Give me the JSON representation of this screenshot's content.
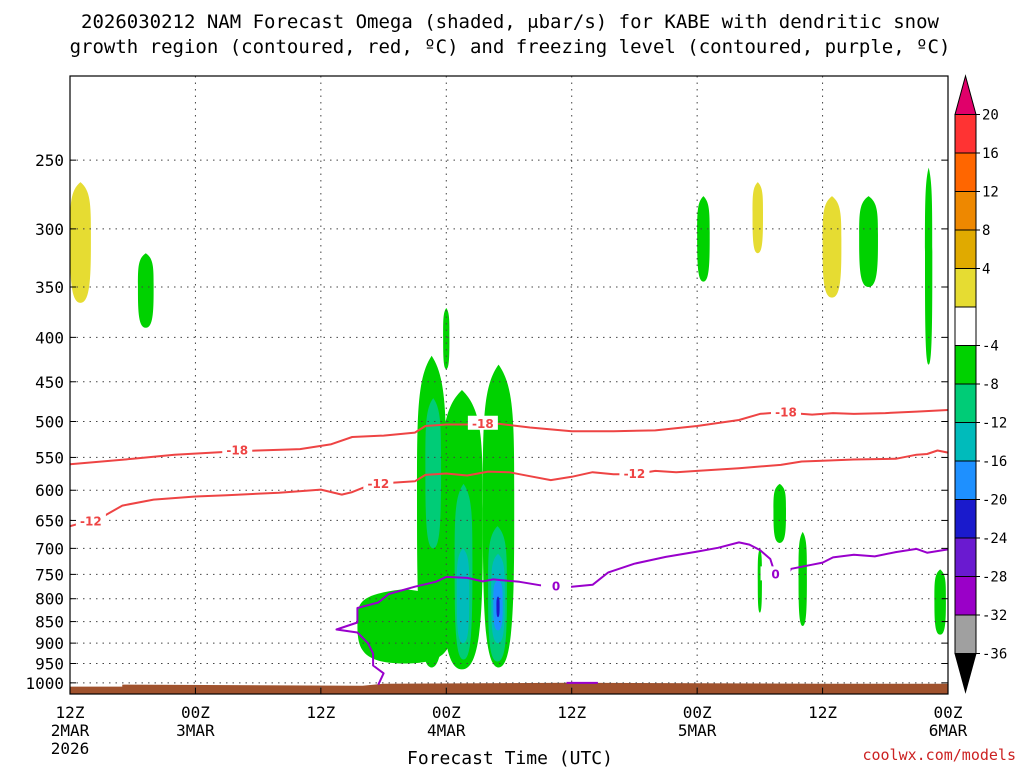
{
  "chart_data": {
    "type": "heatmap",
    "title_lines": [
      "2026030212 NAM Forecast Omega (shaded, μbar/s) for KABE with dendritic snow",
      "growth region (contoured, red, ºC) and freezing level (contoured, purple, ºC)"
    ],
    "xlabel": "Forecast Time (UTC)",
    "credit": "coolwx.com/models",
    "x_ticks": [
      {
        "label": "12Z",
        "sub": "2MAR",
        "sub2": "2026",
        "h": 0
      },
      {
        "label": "00Z",
        "sub": "3MAR",
        "sub2": "",
        "h": 12
      },
      {
        "label": "12Z",
        "sub": "",
        "sub2": "",
        "h": 24
      },
      {
        "label": "00Z",
        "sub": "4MAR",
        "sub2": "",
        "h": 36
      },
      {
        "label": "12Z",
        "sub": "",
        "sub2": "",
        "h": 48
      },
      {
        "label": "00Z",
        "sub": "5MAR",
        "sub2": "",
        "h": 60
      },
      {
        "label": "12Z",
        "sub": "",
        "sub2": "",
        "h": 72
      },
      {
        "label": "00Z",
        "sub": "6MAR",
        "sub2": "",
        "h": 84
      }
    ],
    "x_range_hours": [
      0,
      84
    ],
    "y_axis": "pressure (mb), log scale",
    "y_ticks": [
      250,
      300,
      350,
      400,
      450,
      500,
      550,
      600,
      650,
      700,
      750,
      800,
      850,
      900,
      950,
      1000
    ],
    "y_range_mb": [
      200,
      1030
    ],
    "grid": true,
    "colorbar": {
      "labels": [
        "20",
        "16",
        "12",
        "8",
        "4",
        "-4",
        "-8",
        "-12",
        "-16",
        "-20",
        "-24",
        "-28",
        "-32",
        "-36"
      ],
      "segments": [
        {
          "from": 20,
          "to": 24,
          "color": "#e0006a"
        },
        {
          "from": 16,
          "to": 20,
          "color": "#ff3333"
        },
        {
          "from": 12,
          "to": 16,
          "color": "#ff6600"
        },
        {
          "from": 8,
          "to": 12,
          "color": "#ee8800"
        },
        {
          "from": 4,
          "to": 8,
          "color": "#e0aa00"
        },
        {
          "from": 0,
          "to": 4,
          "color": "#e6dc32"
        },
        {
          "from": -4,
          "to": 0,
          "color": "#ffffff"
        },
        {
          "from": -8,
          "to": -4,
          "color": "#00d200"
        },
        {
          "from": -12,
          "to": -8,
          "color": "#00cc77"
        },
        {
          "from": -16,
          "to": -12,
          "color": "#00bbbb"
        },
        {
          "from": -20,
          "to": -16,
          "color": "#1e90ff"
        },
        {
          "from": -24,
          "to": -20,
          "color": "#1a1acc"
        },
        {
          "from": -28,
          "to": -24,
          "color": "#6a1ad0"
        },
        {
          "from": -32,
          "to": -28,
          "color": "#9a00c8"
        },
        {
          "from": -36,
          "to": -32,
          "color": "#a0a0a0"
        },
        {
          "from": -40,
          "to": -36,
          "color": "#000000"
        }
      ]
    },
    "colors": {
      "dgz": "#ee4444",
      "freezing": "#9900cc",
      "ground": "#a0522d",
      "credit": "#cc2222"
    },
    "omega_areas": [
      {
        "value": 6,
        "color": "#e6dc32",
        "h0": 0,
        "h1": 2,
        "p_top": 265,
        "p_bot": 365
      },
      {
        "value": -6,
        "color": "#00d200",
        "h0": 6.5,
        "h1": 8,
        "p_top": 320,
        "p_bot": 390
      },
      {
        "value": -6,
        "color": "#00d200",
        "h0": 35.7,
        "h1": 36.3,
        "p_top": 370,
        "p_bot": 435
      },
      {
        "value": -6,
        "color": "#00d200",
        "h0": 33.2,
        "h1": 36,
        "p_top": 420,
        "p_bot": 960
      },
      {
        "value": -6,
        "color": "#00d200",
        "h0": 35.5,
        "h1": 39.5,
        "p_top": 460,
        "p_bot": 965
      },
      {
        "value": -6,
        "color": "#00d200",
        "h0": 39.5,
        "h1": 42.5,
        "p_top": 430,
        "p_bot": 960
      },
      {
        "value": -6,
        "color": "#00d200",
        "h0": 27.5,
        "h1": 36.5,
        "p_top": 780,
        "p_bot": 950
      },
      {
        "value": -10,
        "color": "#00cc77",
        "h0": 34,
        "h1": 35.5,
        "p_top": 470,
        "p_bot": 700
      },
      {
        "value": -10,
        "color": "#00cc77",
        "h0": 36.8,
        "h1": 38.5,
        "p_top": 590,
        "p_bot": 940
      },
      {
        "value": -10,
        "color": "#00cc77",
        "h0": 40,
        "h1": 41.8,
        "p_top": 660,
        "p_bot": 945
      },
      {
        "value": -14,
        "color": "#00bbbb",
        "h0": 37,
        "h1": 38.2,
        "p_top": 700,
        "p_bot": 900
      },
      {
        "value": -14,
        "color": "#00bbbb",
        "h0": 40.3,
        "h1": 41.6,
        "p_top": 710,
        "p_bot": 900
      },
      {
        "value": -18,
        "color": "#1e90ff",
        "h0": 40.5,
        "h1": 41.4,
        "p_top": 760,
        "p_bot": 870
      },
      {
        "value": -22,
        "color": "#1a1acc",
        "h0": 40.8,
        "h1": 41.1,
        "p_top": 795,
        "p_bot": 840
      },
      {
        "value": -6,
        "color": "#00d200",
        "h0": 60,
        "h1": 61.2,
        "p_top": 275,
        "p_bot": 345
      },
      {
        "value": 6,
        "color": "#e6dc32",
        "h0": 65.3,
        "h1": 66.3,
        "p_top": 265,
        "p_bot": 320
      },
      {
        "value": 6,
        "color": "#e6dc32",
        "h0": 72,
        "h1": 73.8,
        "p_top": 275,
        "p_bot": 360
      },
      {
        "value": -6,
        "color": "#00d200",
        "h0": 75.5,
        "h1": 77.3,
        "p_top": 275,
        "p_bot": 350
      },
      {
        "value": -6,
        "color": "#00d200",
        "h0": 81.8,
        "h1": 82.5,
        "p_top": 255,
        "p_bot": 430
      },
      {
        "value": -6,
        "color": "#00d200",
        "h0": 67.3,
        "h1": 68.5,
        "p_top": 590,
        "p_bot": 690
      },
      {
        "value": -6,
        "color": "#00d200",
        "h0": 65.8,
        "h1": 66.2,
        "p_top": 700,
        "p_bot": 830
      },
      {
        "value": -6,
        "color": "#00d200",
        "h0": 69.7,
        "h1": 70.5,
        "p_top": 670,
        "p_bot": 860
      },
      {
        "value": -6,
        "color": "#00d200",
        "h0": 82.7,
        "h1": 83.8,
        "p_top": 740,
        "p_bot": 880
      }
    ],
    "contours": [
      {
        "name": "-18",
        "color": "#ee4444",
        "label": "-18",
        "label_points": [
          [
            16,
            540
          ],
          [
            39.5,
            503
          ],
          [
            68.5,
            488
          ]
        ],
        "points": [
          [
            0,
            560
          ],
          [
            6,
            552
          ],
          [
            10,
            546
          ],
          [
            16,
            541
          ],
          [
            22,
            538
          ],
          [
            25,
            531
          ],
          [
            27,
            521
          ],
          [
            30,
            519
          ],
          [
            33,
            515
          ],
          [
            34,
            506
          ],
          [
            36,
            504
          ],
          [
            38,
            504
          ],
          [
            39.5,
            503
          ],
          [
            41,
            503
          ],
          [
            44,
            508
          ],
          [
            48,
            513
          ],
          [
            52,
            513
          ],
          [
            56,
            512
          ],
          [
            60,
            506
          ],
          [
            64,
            498
          ],
          [
            66,
            490
          ],
          [
            68,
            488
          ],
          [
            71,
            491
          ],
          [
            73,
            489
          ],
          [
            75,
            490
          ],
          [
            78,
            489
          ],
          [
            81,
            487
          ],
          [
            84,
            485
          ]
        ]
      },
      {
        "name": "-12",
        "color": "#ee4444",
        "label": "-12",
        "label_points": [
          [
            2,
            652
          ],
          [
            29.5,
            590
          ],
          [
            54,
            575
          ]
        ],
        "points": [
          [
            0,
            660
          ],
          [
            3,
            645
          ],
          [
            5,
            625
          ],
          [
            8,
            615
          ],
          [
            12,
            610
          ],
          [
            15,
            608
          ],
          [
            20,
            604
          ],
          [
            24,
            599
          ],
          [
            26,
            607
          ],
          [
            27,
            603
          ],
          [
            28.5,
            593
          ],
          [
            31,
            588
          ],
          [
            33,
            586
          ],
          [
            34,
            576
          ],
          [
            36,
            574
          ],
          [
            38,
            577
          ],
          [
            40,
            571
          ],
          [
            42,
            572
          ],
          [
            44,
            578
          ],
          [
            46,
            584
          ],
          [
            48,
            579
          ],
          [
            50,
            572
          ],
          [
            52,
            575
          ],
          [
            54,
            575
          ],
          [
            56,
            570
          ],
          [
            58,
            572
          ],
          [
            60,
            570
          ],
          [
            64,
            566
          ],
          [
            68,
            561
          ],
          [
            70,
            556
          ],
          [
            72,
            555
          ],
          [
            75,
            553
          ],
          [
            79,
            552
          ],
          [
            81,
            546
          ],
          [
            82,
            545
          ],
          [
            83,
            540
          ],
          [
            84,
            543
          ]
        ]
      },
      {
        "name": "0",
        "color": "#9900cc",
        "label": "0",
        "label_points": [
          [
            46.5,
            775
          ],
          [
            67.5,
            750
          ]
        ],
        "points": [
          [
            29.5,
            1005
          ],
          [
            30,
            975
          ],
          [
            29,
            955
          ],
          [
            29,
            925
          ],
          [
            28.5,
            900
          ],
          [
            27.5,
            875
          ],
          [
            25.5,
            868
          ],
          [
            27.5,
            852
          ],
          [
            27.5,
            820
          ],
          [
            29.5,
            808
          ],
          [
            30.5,
            790
          ],
          [
            33,
            775
          ],
          [
            35,
            765
          ],
          [
            36,
            755
          ],
          [
            38,
            757
          ],
          [
            39.5,
            764
          ],
          [
            40.5,
            760
          ],
          [
            43,
            765
          ],
          [
            45,
            772
          ],
          [
            47,
            777
          ],
          [
            48.5,
            774
          ],
          [
            50,
            771
          ],
          [
            51.5,
            746
          ],
          [
            54,
            729
          ],
          [
            57,
            716
          ],
          [
            60,
            706
          ],
          [
            62,
            699
          ],
          [
            64,
            689
          ],
          [
            65,
            693
          ],
          [
            66,
            703
          ],
          [
            67,
            720
          ],
          [
            67.5,
            752
          ],
          [
            68.5,
            755
          ],
          [
            69,
            739
          ],
          [
            71,
            731
          ],
          [
            72,
            727
          ],
          [
            73,
            717
          ],
          [
            75,
            712
          ],
          [
            77,
            715
          ],
          [
            79,
            707
          ],
          [
            81,
            701
          ],
          [
            82,
            708
          ],
          [
            84,
            702
          ]
        ]
      },
      {
        "name": "0-surface",
        "color": "#9900cc",
        "label": "",
        "label_points": [],
        "points": [
          [
            47.5,
            1000
          ],
          [
            50.5,
            1000
          ]
        ]
      }
    ]
  }
}
